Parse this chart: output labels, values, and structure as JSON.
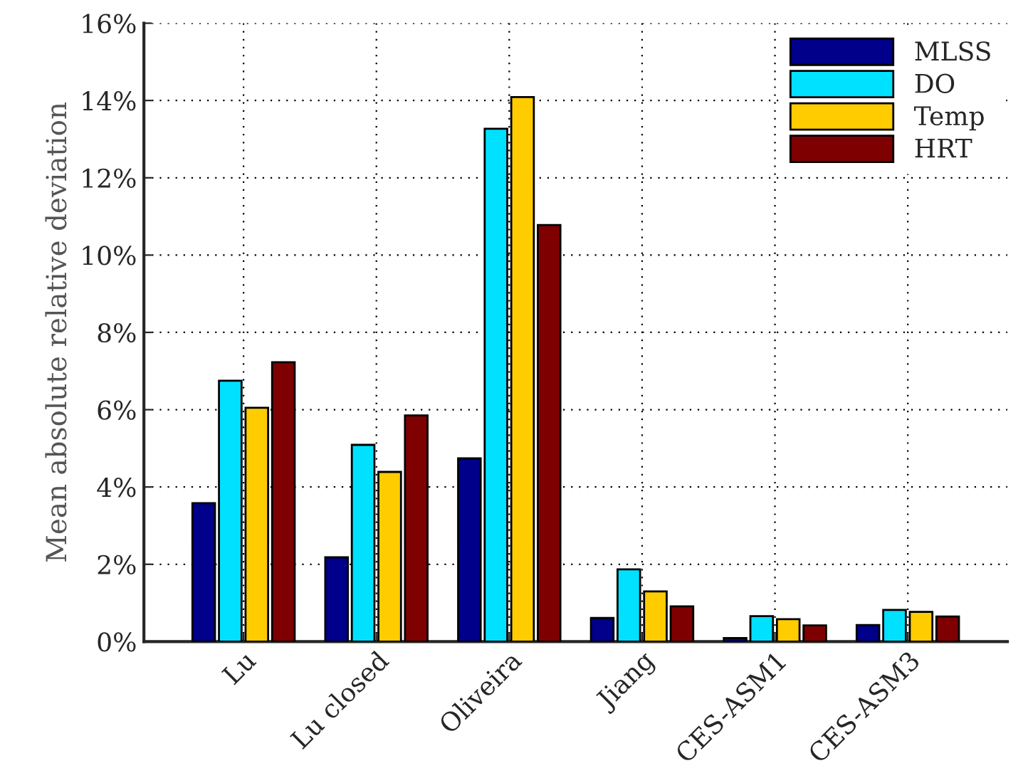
{
  "chart_data": {
    "type": "bar",
    "ylabel": "Mean absolute relative deviation",
    "categories": [
      "Lu",
      "Lu closed",
      "Oliveira",
      "Jiang",
      "CES-ASM1",
      "CES-ASM3"
    ],
    "series": [
      {
        "name": "MLSS",
        "color": "#00008b",
        "values": [
          3.58,
          2.18,
          4.74,
          0.61,
          0.09,
          0.43
        ]
      },
      {
        "name": "DO",
        "color": "#00e1ff",
        "values": [
          6.75,
          5.09,
          13.27,
          1.87,
          0.66,
          0.82
        ]
      },
      {
        "name": "Temp",
        "color": "#ffcc00",
        "values": [
          6.05,
          4.39,
          14.09,
          1.3,
          0.58,
          0.77
        ]
      },
      {
        "name": "HRT",
        "color": "#7f0000",
        "values": [
          7.23,
          5.85,
          10.78,
          0.91,
          0.42,
          0.65
        ]
      }
    ],
    "ylim": [
      0,
      16
    ],
    "yticks": [
      {
        "value": 0,
        "label": "0%"
      },
      {
        "value": 2,
        "label": "2%"
      },
      {
        "value": 4,
        "label": "4%"
      },
      {
        "value": 6,
        "label": "6%"
      },
      {
        "value": 8,
        "label": "8%"
      },
      {
        "value": 10,
        "label": "10%"
      },
      {
        "value": 12,
        "label": "12%"
      },
      {
        "value": 14,
        "label": "14%"
      },
      {
        "value": 16,
        "label": "16%"
      }
    ],
    "grid": true,
    "legend": "top right"
  }
}
